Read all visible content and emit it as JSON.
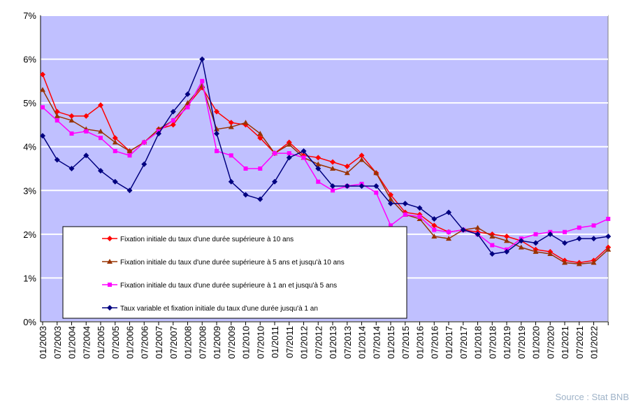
{
  "chart_data": {
    "type": "line",
    "source": "Source : Stat BNB",
    "categories": [
      "01/2003",
      "07/2003",
      "01/2004",
      "07/2004",
      "01/2005",
      "07/2005",
      "01/2006",
      "07/2006",
      "01/2007",
      "07/2007",
      "01/2008",
      "07/2008",
      "01/2009",
      "07/2009",
      "01/2010",
      "07/2010",
      "01/2011",
      "07/2011",
      "01/2012",
      "07/2012",
      "01/2013",
      "07/2013",
      "01/2014",
      "07/2014",
      "01/2015",
      "07/2015",
      "01/2016",
      "07/2016",
      "01/2017",
      "07/2017",
      "01/2018",
      "07/2018",
      "01/2019",
      "07/2019",
      "01/2020",
      "07/2020",
      "01/2021",
      "07/2021",
      "01/2022",
      null
    ],
    "series": [
      {
        "name": "Fixation initiale du taux d'une durée supérieure à 10 ans",
        "color": "#ff0000",
        "marker": "diamond",
        "values": [
          5.65,
          4.8,
          4.7,
          4.7,
          4.95,
          4.2,
          3.9,
          4.1,
          4.4,
          4.5,
          4.95,
          5.35,
          4.8,
          4.55,
          4.5,
          4.2,
          3.85,
          4.1,
          3.8,
          3.75,
          3.65,
          3.55,
          3.8,
          3.4,
          2.9,
          2.5,
          2.45,
          2.2,
          2.05,
          2.1,
          2.05,
          2.0,
          1.95,
          1.85,
          1.65,
          1.6,
          1.4,
          1.35,
          1.4,
          1.7
        ]
      },
      {
        "name": "Fixation initiale du taux d'une durée supérieure à 5 ans et  jusqu'à 10 ans",
        "color": "#993300",
        "marker": "triangle",
        "values": [
          5.3,
          4.7,
          4.6,
          4.4,
          4.35,
          4.1,
          3.9,
          4.1,
          4.4,
          4.6,
          5.0,
          5.4,
          4.4,
          4.45,
          4.55,
          4.3,
          3.85,
          4.05,
          3.75,
          3.6,
          3.5,
          3.4,
          3.7,
          3.4,
          2.8,
          2.45,
          2.35,
          1.95,
          1.9,
          2.1,
          2.15,
          1.95,
          1.85,
          1.7,
          1.6,
          1.55,
          1.35,
          1.32,
          1.35,
          1.65
        ]
      },
      {
        "name": "Fixation initiale du taux d'une durée supérieure à 1 an et  jusqu'à 5 ans",
        "color": "#ff00ff",
        "marker": "square",
        "values": [
          4.9,
          4.6,
          4.3,
          4.35,
          4.2,
          3.9,
          3.8,
          4.1,
          4.35,
          4.6,
          4.9,
          5.5,
          3.9,
          3.8,
          3.5,
          3.5,
          3.85,
          3.85,
          3.75,
          3.2,
          3.0,
          3.1,
          3.15,
          2.95,
          2.2,
          2.45,
          2.4,
          2.1,
          2.05,
          2.1,
          2.0,
          1.75,
          1.65,
          1.9,
          2.0,
          2.05,
          2.05,
          2.15,
          2.2,
          2.35
        ]
      },
      {
        "name": "Taux variable et fixation initiale du taux d'une durée jusqu'à 1 an",
        "color": "#000080",
        "marker": "diamond",
        "values": [
          4.25,
          3.7,
          3.5,
          3.8,
          3.45,
          3.2,
          3.0,
          3.6,
          4.3,
          4.8,
          5.2,
          6.0,
          4.3,
          3.2,
          2.9,
          2.8,
          3.2,
          3.75,
          3.9,
          3.5,
          3.1,
          3.1,
          3.1,
          3.1,
          2.7,
          2.7,
          2.6,
          2.35,
          2.5,
          2.1,
          2.0,
          1.55,
          1.6,
          1.85,
          1.8,
          2.0,
          1.8,
          1.9,
          1.9,
          1.95
        ]
      }
    ],
    "ylim": [
      0,
      7
    ],
    "yticks": [
      {
        "value": 0,
        "label": "0%"
      },
      {
        "value": 1,
        "label": "1%"
      },
      {
        "value": 2,
        "label": "2%"
      },
      {
        "value": 3,
        "label": "3%"
      },
      {
        "value": 4,
        "label": "4%"
      },
      {
        "value": 5,
        "label": "5%"
      },
      {
        "value": 6,
        "label": "6%"
      },
      {
        "value": 7,
        "label": "7%"
      }
    ],
    "grid": true,
    "plot_background": "#c0c0ff"
  }
}
